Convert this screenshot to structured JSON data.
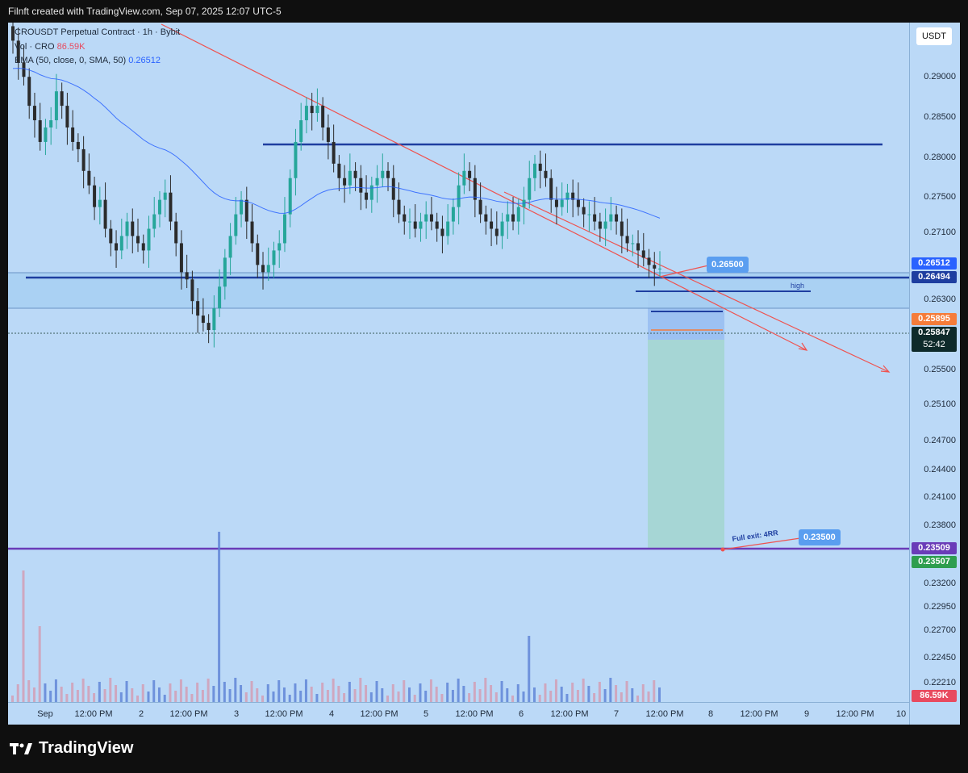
{
  "header": {
    "caption": "Filnft created with TradingView.com, Sep 07, 2025 12:07 UTC-5"
  },
  "legend": {
    "symbol": "CROUSDT Perpetual Contract · 1h · Bybit",
    "volume": "Vol · CRO",
    "volume_value": "86.59K",
    "ema": "EMA (50, close, 0, SMA, 50)",
    "ema_value": "0.26512"
  },
  "axis": {
    "unit": "USDT",
    "price_ticks": [
      "0.29000",
      "0.28500",
      "0.28000",
      "0.27500",
      "0.27100",
      "0.26700",
      "0.26300",
      "0.25900",
      "0.25500",
      "0.25100",
      "0.24700",
      "0.24400",
      "0.24100",
      "0.23800",
      "0.23200",
      "0.22950",
      "0.22700",
      "0.22450",
      "0.22210"
    ],
    "time_labels": [
      "Sep",
      "12:00 PM",
      "2",
      "12:00 PM",
      "3",
      "12:00 PM",
      "4",
      "12:00 PM",
      "5",
      "12:00 PM",
      "6",
      "12:00 PM",
      "7",
      "12:00 PM",
      "8",
      "12:00 PM",
      "9",
      "12:00 PM",
      "10"
    ]
  },
  "tags": {
    "ema": {
      "text": "0.26512",
      "color": "#2962ff"
    },
    "level": {
      "text": "0.26494",
      "color": "#1e3ea0"
    },
    "entry": {
      "text": "0.25895",
      "color": "#f57c3a"
    },
    "last": {
      "text": "0.25847",
      "color": "#0e2a2a"
    },
    "countdown": {
      "text": "52:42"
    },
    "purple": {
      "text": "0.23509",
      "color": "#6a3cb8"
    },
    "green": {
      "text": "0.23507",
      "color": "#2e9e4f"
    },
    "vol": {
      "text": "86.59K",
      "color": "#e84a5f"
    }
  },
  "annotations": {
    "stop_box": "0.26500",
    "target_box": "0.23500",
    "full_exit": "Full exit: 4RR",
    "high": "high"
  },
  "footer": {
    "brand": "TradingView"
  },
  "colors": {
    "up": "#26a69a",
    "down": "#2b2b2b",
    "ema": "#2962ff",
    "trend": "#ef5350",
    "level": "#1e3ea0",
    "purple": "#6a3cb8"
  },
  "chart_data": {
    "type": "candlestick",
    "title": "CROUSDT Perpetual Contract · 1h · Bybit",
    "ylim": [
      0.22,
      0.2925
    ],
    "horizontal_levels": [
      0.2813,
      0.26494,
      0.2635,
      0.26512,
      0.23509
    ],
    "series": [
      {
        "name": "EMA (50, close, 0, SMA, 50)",
        "last": 0.26512
      },
      {
        "name": "Vol · CRO",
        "last": "86.59K"
      }
    ],
    "position": {
      "entry": 0.25895,
      "stop": 0.265,
      "target": 0.235,
      "reward_risk": "4RR"
    },
    "closes": [
      0.29,
      0.287,
      0.285,
      0.281,
      0.279,
      0.276,
      0.278,
      0.279,
      0.283,
      0.281,
      0.278,
      0.276,
      0.275,
      0.272,
      0.27,
      0.267,
      0.268,
      0.264,
      0.262,
      0.261,
      0.263,
      0.265,
      0.263,
      0.262,
      0.261,
      0.264,
      0.266,
      0.268,
      0.269,
      0.265,
      0.262,
      0.258,
      0.257,
      0.254,
      0.252,
      0.251,
      0.25,
      0.253,
      0.256,
      0.26,
      0.263,
      0.266,
      0.268,
      0.265,
      0.262,
      0.259,
      0.258,
      0.259,
      0.261,
      0.262,
      0.266,
      0.271,
      0.276,
      0.279,
      0.281,
      0.28,
      0.281,
      0.278,
      0.276,
      0.273,
      0.271,
      0.27,
      0.272,
      0.271,
      0.269,
      0.268,
      0.27,
      0.271,
      0.272,
      0.271,
      0.268,
      0.266,
      0.265,
      0.265,
      0.264,
      0.265,
      0.266,
      0.265,
      0.264,
      0.263,
      0.265,
      0.267,
      0.27,
      0.272,
      0.271,
      0.268,
      0.266,
      0.265,
      0.264,
      0.263,
      0.265,
      0.266,
      0.265,
      0.267,
      0.268,
      0.271,
      0.273,
      0.272,
      0.271,
      0.268,
      0.267,
      0.268,
      0.269,
      0.268,
      0.267,
      0.266,
      0.266,
      0.265,
      0.264,
      0.265,
      0.266,
      0.265,
      0.263,
      0.262,
      0.262,
      0.261,
      0.26,
      0.259,
      0.2585,
      0.2585
    ]
  }
}
